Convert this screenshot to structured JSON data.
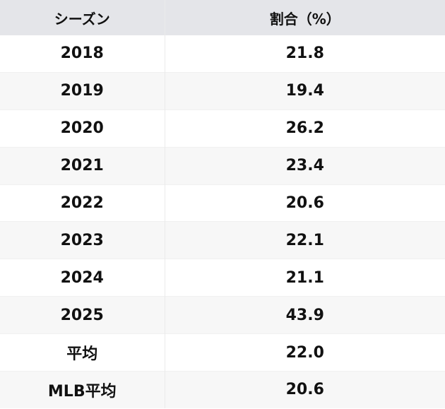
{
  "table": {
    "headers": [
      "シーズン",
      "割合（%）"
    ],
    "rows": [
      [
        "2018",
        "21.8"
      ],
      [
        "2019",
        "19.4"
      ],
      [
        "2020",
        "26.2"
      ],
      [
        "2021",
        "23.4"
      ],
      [
        "2022",
        "20.6"
      ],
      [
        "2023",
        "22.1"
      ],
      [
        "2024",
        "21.1"
      ],
      [
        "2025",
        "43.9"
      ],
      [
        "平均",
        "22.0"
      ],
      [
        "MLB平均",
        "20.6"
      ]
    ]
  }
}
